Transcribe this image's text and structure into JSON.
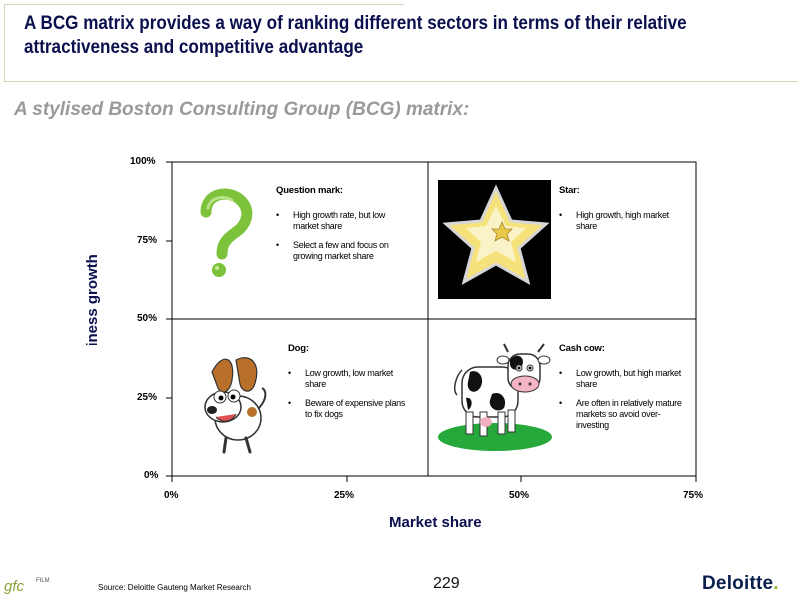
{
  "header": {
    "title": "A BCG matrix provides a way of ranking different sectors in terms of their relative attractiveness and competitive advantage",
    "subtitle": "A stylised Boston Consulting Group (BCG) matrix:"
  },
  "axes": {
    "y_label": "Business growth rate",
    "y_ticks": [
      "100%",
      "75%",
      "50%",
      "25%",
      "0%"
    ],
    "x_label": "Market share",
    "x_ticks": [
      "0%",
      "25%",
      "50%",
      "75%"
    ]
  },
  "quadrants": {
    "question_mark": {
      "heading": "Question mark:",
      "bullets": [
        "High growth rate, but low market share",
        "Select a few and focus on growing market share"
      ]
    },
    "star": {
      "heading": "Star:",
      "bullets": [
        "High growth, high market share"
      ]
    },
    "dog": {
      "heading": "Dog:",
      "bullets": [
        "Low growth, low market share",
        "Beware of expensive plans to fix dogs"
      ]
    },
    "cash_cow": {
      "heading": "Cash cow:",
      "bullets": [
        "Low growth, but high market share",
        "Are often in relatively mature markets so avoid over-investing"
      ]
    }
  },
  "footer": {
    "source": "Source: Deloitte Gauteng Market Research",
    "page_number": "229",
    "brand": "Deloitte",
    "brand_dot": ".",
    "partner_logo": "gfc",
    "partner_logo_small": "FILM"
  },
  "colors": {
    "title": "#0a0f4d",
    "subtitle": "#9a9a9a",
    "grid": "#000000",
    "brand_green": "#86bc25"
  }
}
